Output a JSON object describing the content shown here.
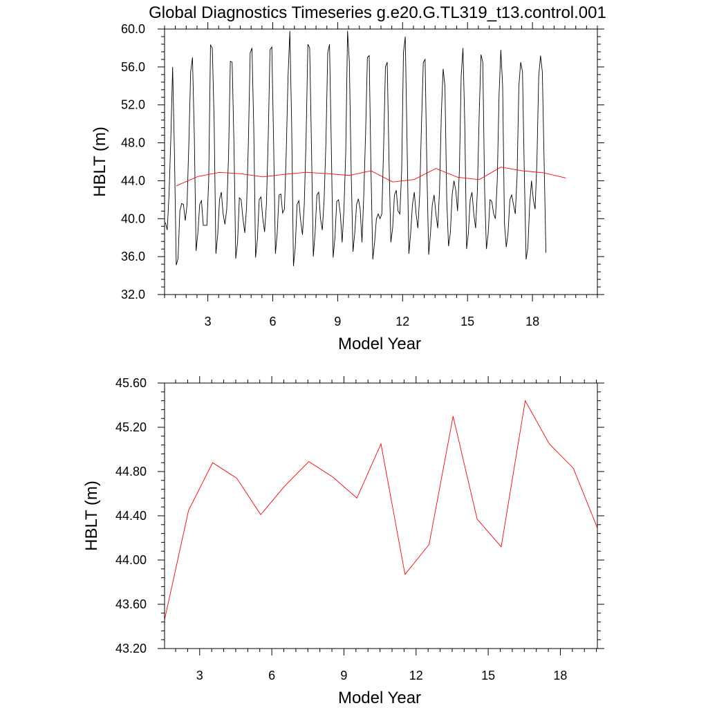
{
  "title": "Global Diagnostics Timeseries g.e20.G.TL319_t13.control.001",
  "colors": {
    "monthly": "#000000",
    "annual": "#ff0000"
  },
  "chart_data": [
    {
      "type": "line",
      "xlabel": "Model Year",
      "ylabel": "HBLT (m)",
      "xlim": [
        1.0,
        21.0
      ],
      "ylim": [
        32.0,
        60.0
      ],
      "xticks": [
        3,
        6,
        9,
        12,
        15,
        18
      ],
      "xtick_labels": [
        "3",
        "6",
        "9",
        "12",
        "15",
        "18"
      ],
      "yticks": [
        32,
        36,
        40,
        44,
        48,
        52,
        56,
        60
      ],
      "ytick_labels": [
        "32.0",
        "36.0",
        "40.0",
        "44.0",
        "48.0",
        "52.0",
        "56.0",
        "60.0"
      ],
      "series": [
        {
          "color": "#000000",
          "x_start": 1.04,
          "x_step": 0.08333,
          "values": [
            39.6,
            38.8,
            42.5,
            48.5,
            56.0,
            47.0,
            35.1,
            35.8,
            40.8,
            41.6,
            41.5,
            39.8,
            41.5,
            48.0,
            55.5,
            57.0,
            49.0,
            36.6,
            38.5,
            41.5,
            41.9,
            39.3,
            39.3,
            39.3,
            44.0,
            58.3,
            58.0,
            50.5,
            36.3,
            38.3,
            42.0,
            42.8,
            40.5,
            39.4,
            41.0,
            46.5,
            56.6,
            56.5,
            48.0,
            35.8,
            37.5,
            42.2,
            42.0,
            40.0,
            38.5,
            41.2,
            48.0,
            57.5,
            58.0,
            49.5,
            35.9,
            37.8,
            42.0,
            42.3,
            40.0,
            38.6,
            41.5,
            48.5,
            57.8,
            58.1,
            48.0,
            36.3,
            38.5,
            42.5,
            42.6,
            40.6,
            41.0,
            47.0,
            55.0,
            59.8,
            50.0,
            35.0,
            37.0,
            41.5,
            41.9,
            39.8,
            38.3,
            41.5,
            48.5,
            58.4,
            58.0,
            47.5,
            36.0,
            38.5,
            42.5,
            42.8,
            40.0,
            38.8,
            42.0,
            48.0,
            57.5,
            58.4,
            47.5,
            35.9,
            38.0,
            41.8,
            42.0,
            40.5,
            37.5,
            41.0,
            47.0,
            59.8,
            56.5,
            45.0,
            36.5,
            38.5,
            41.5,
            42.1,
            41.0,
            37.5,
            42.5,
            49.0,
            57.0,
            57.2,
            45.0,
            35.7,
            37.5,
            40.0,
            40.5,
            40.0,
            40.5,
            47.5,
            56.0,
            56.5,
            46.0,
            37.5,
            39.0,
            42.5,
            43.0,
            40.8,
            40.5,
            45.0,
            57.5,
            59.2,
            48.0,
            36.3,
            38.5,
            41.5,
            42.8,
            40.5,
            39.0,
            42.5,
            50.0,
            56.5,
            56.8,
            45.0,
            36.2,
            38.5,
            41.5,
            42.5,
            40.5,
            39.0,
            43.0,
            51.0,
            55.8,
            54.0,
            42.0,
            37.1,
            38.5,
            42.5,
            44.0,
            43.0,
            40.8,
            45.0,
            55.0,
            58.0,
            50.0,
            36.8,
            38.5,
            42.0,
            42.8,
            40.5,
            39.0,
            43.0,
            51.0,
            57.3,
            56.5,
            43.0,
            36.8,
            38.5,
            42.0,
            41.8,
            40.5,
            40.0,
            44.0,
            53.0,
            57.8,
            54.0,
            39.5,
            37.0,
            38.5,
            42.0,
            42.5,
            41.5,
            40.5,
            44.5,
            54.0,
            56.5,
            55.5,
            45.0,
            35.7,
            37.0,
            41.5,
            44.0,
            42.0,
            41.0,
            46.0,
            55.0,
            57.2,
            55.5,
            46.0,
            36.4
          ]
        },
        {
          "color": "#ff0000",
          "x": [
            1.54,
            2.54,
            3.54,
            4.54,
            5.54,
            6.54,
            7.54,
            8.54,
            9.54,
            10.54,
            11.54,
            12.54,
            13.54,
            14.54,
            15.54,
            16.54,
            17.54,
            18.54,
            19.54
          ],
          "values": [
            43.46,
            44.45,
            44.88,
            44.74,
            44.41,
            44.67,
            44.89,
            44.75,
            44.56,
            45.05,
            43.87,
            44.14,
            45.3,
            44.37,
            44.12,
            45.44,
            45.05,
            44.83,
            44.29
          ]
        }
      ]
    },
    {
      "type": "line",
      "xlabel": "Model Year",
      "ylabel": "HBLT (m)",
      "xlim": [
        1.54,
        19.54
      ],
      "ylim": [
        43.2,
        45.6
      ],
      "xticks": [
        3,
        6,
        9,
        12,
        15,
        18
      ],
      "xtick_labels": [
        "3",
        "6",
        "9",
        "12",
        "15",
        "18"
      ],
      "yticks": [
        43.2,
        43.6,
        44.0,
        44.4,
        44.8,
        45.2,
        45.6
      ],
      "ytick_labels": [
        "43.20",
        "43.60",
        "44.00",
        "44.40",
        "44.80",
        "45.20",
        "45.60"
      ],
      "series": [
        {
          "color": "#ff0000",
          "x": [
            1.54,
            2.54,
            3.54,
            4.54,
            5.54,
            6.54,
            7.54,
            8.54,
            9.54,
            10.54,
            11.54,
            12.54,
            13.54,
            14.54,
            15.54,
            16.54,
            17.54,
            18.54,
            19.54
          ],
          "values": [
            43.46,
            44.45,
            44.88,
            44.74,
            44.41,
            44.67,
            44.89,
            44.75,
            44.56,
            45.05,
            43.87,
            44.14,
            45.3,
            44.37,
            44.12,
            45.44,
            45.05,
            44.83,
            44.29
          ]
        }
      ]
    }
  ]
}
